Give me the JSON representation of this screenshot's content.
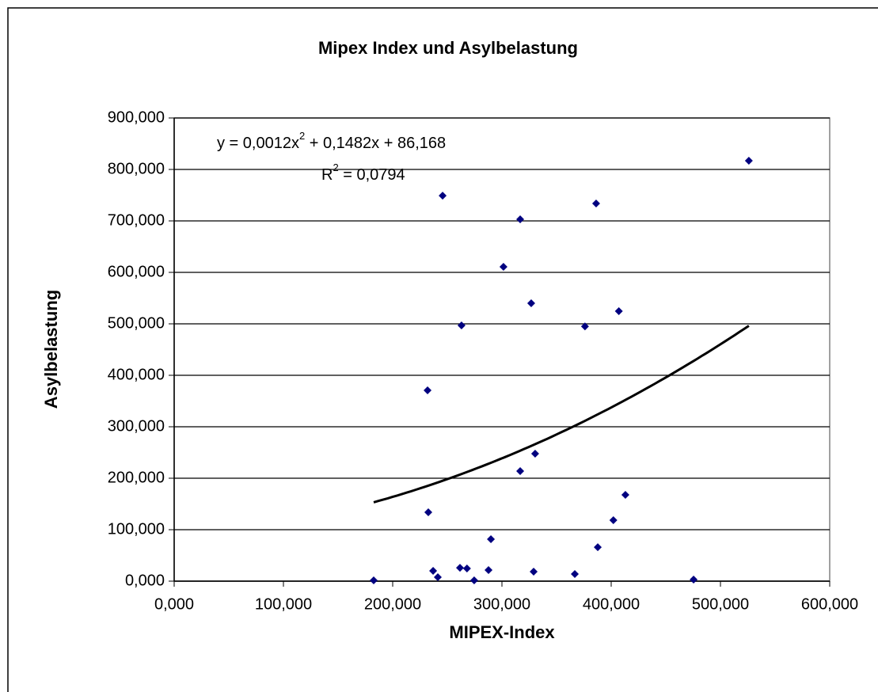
{
  "chart_data": {
    "type": "scatter",
    "title": "Mipex Index und Asylbelastung",
    "xlabel": "MIPEX-Index",
    "ylabel": "Asylbelastung",
    "xlim": [
      0,
      600
    ],
    "ylim": [
      0,
      900
    ],
    "xticks": [
      {
        "value": 0,
        "label": "0,000"
      },
      {
        "value": 100,
        "label": "100,000"
      },
      {
        "value": 200,
        "label": "200,000"
      },
      {
        "value": 300,
        "label": "300,000"
      },
      {
        "value": 400,
        "label": "400,000"
      },
      {
        "value": 500,
        "label": "500,000"
      },
      {
        "value": 600,
        "label": "600,000"
      }
    ],
    "yticks": [
      {
        "value": 0,
        "label": "0,000"
      },
      {
        "value": 100,
        "label": "100,000"
      },
      {
        "value": 200,
        "label": "200,000"
      },
      {
        "value": 300,
        "label": "300,000"
      },
      {
        "value": 400,
        "label": "400,000"
      },
      {
        "value": 500,
        "label": "500,000"
      },
      {
        "value": 600,
        "label": "600,000"
      },
      {
        "value": 700,
        "label": "700,000"
      },
      {
        "value": 800,
        "label": "800,000"
      },
      {
        "value": 900,
        "label": "900,000"
      }
    ],
    "grid": true,
    "color": "#000080",
    "x": [
      182.6,
      231.9,
      232.6,
      237,
      241.3,
      245.7,
      263,
      261.6,
      268,
      274.6,
      287.7,
      289.9,
      301.4,
      316.7,
      316.7,
      326.8,
      329,
      330.4,
      366.7,
      376,
      386.2,
      387.7,
      402,
      407,
      413,
      475.4,
      526
    ],
    "values": [
      1.5,
      370.8,
      133.8,
      20,
      7.7,
      749,
      497,
      26,
      24.6,
      1.5,
      21.5,
      81.5,
      610.8,
      703,
      213.8,
      540,
      18.5,
      247.7,
      13.8,
      495,
      733.8,
      66,
      118.5,
      524.6,
      167.7,
      3,
      817
    ],
    "trendline": {
      "type": "polynomial",
      "coefficients": [
        0.0012,
        0.1482,
        86.168
      ],
      "equation": [
        "y = 0,0012x",
        "2",
        " + 0,1482x + 86,168"
      ],
      "r_squared": [
        "R",
        "2",
        " = 0,0794"
      ]
    }
  }
}
